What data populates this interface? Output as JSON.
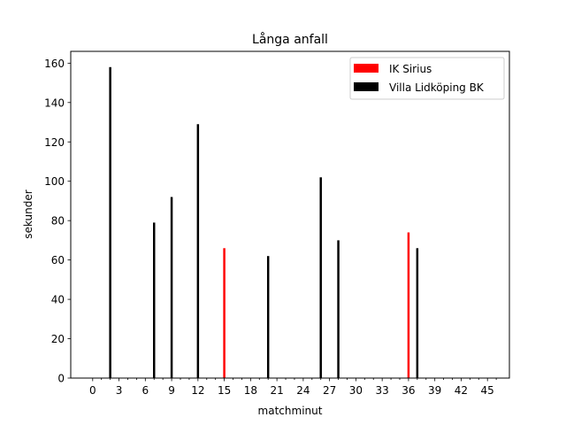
{
  "chart_data": {
    "type": "bar",
    "title": "Långa anfall",
    "xlabel": "matchminut",
    "ylabel": "sekunder",
    "xlim": [
      -2.5,
      47.5
    ],
    "ylim": [
      0,
      166
    ],
    "xticks_major": [
      0,
      3,
      6,
      9,
      12,
      15,
      18,
      21,
      24,
      27,
      30,
      33,
      36,
      39,
      42,
      45
    ],
    "xticks_minor": [
      1,
      2,
      4,
      5,
      7,
      8,
      10,
      11,
      13,
      14,
      16,
      17,
      19,
      20,
      22,
      23,
      25,
      26,
      28,
      29,
      31,
      32,
      34,
      35,
      37,
      38,
      40,
      41,
      43,
      44,
      46
    ],
    "yticks": [
      0,
      20,
      40,
      60,
      80,
      100,
      120,
      140,
      160
    ],
    "bar_width_minutes": 0.25,
    "grid": false,
    "legend_position": "upper right",
    "series": [
      {
        "name": "IK Sirius",
        "color": "#ff0000",
        "x": [
          15,
          36
        ],
        "values": [
          66,
          74
        ]
      },
      {
        "name": "Villa Lidköping BK",
        "color": "#000000",
        "x": [
          2,
          7,
          9,
          12,
          20,
          26,
          28,
          37
        ],
        "values": [
          158,
          79,
          92,
          129,
          62,
          102,
          70,
          66
        ]
      }
    ]
  }
}
